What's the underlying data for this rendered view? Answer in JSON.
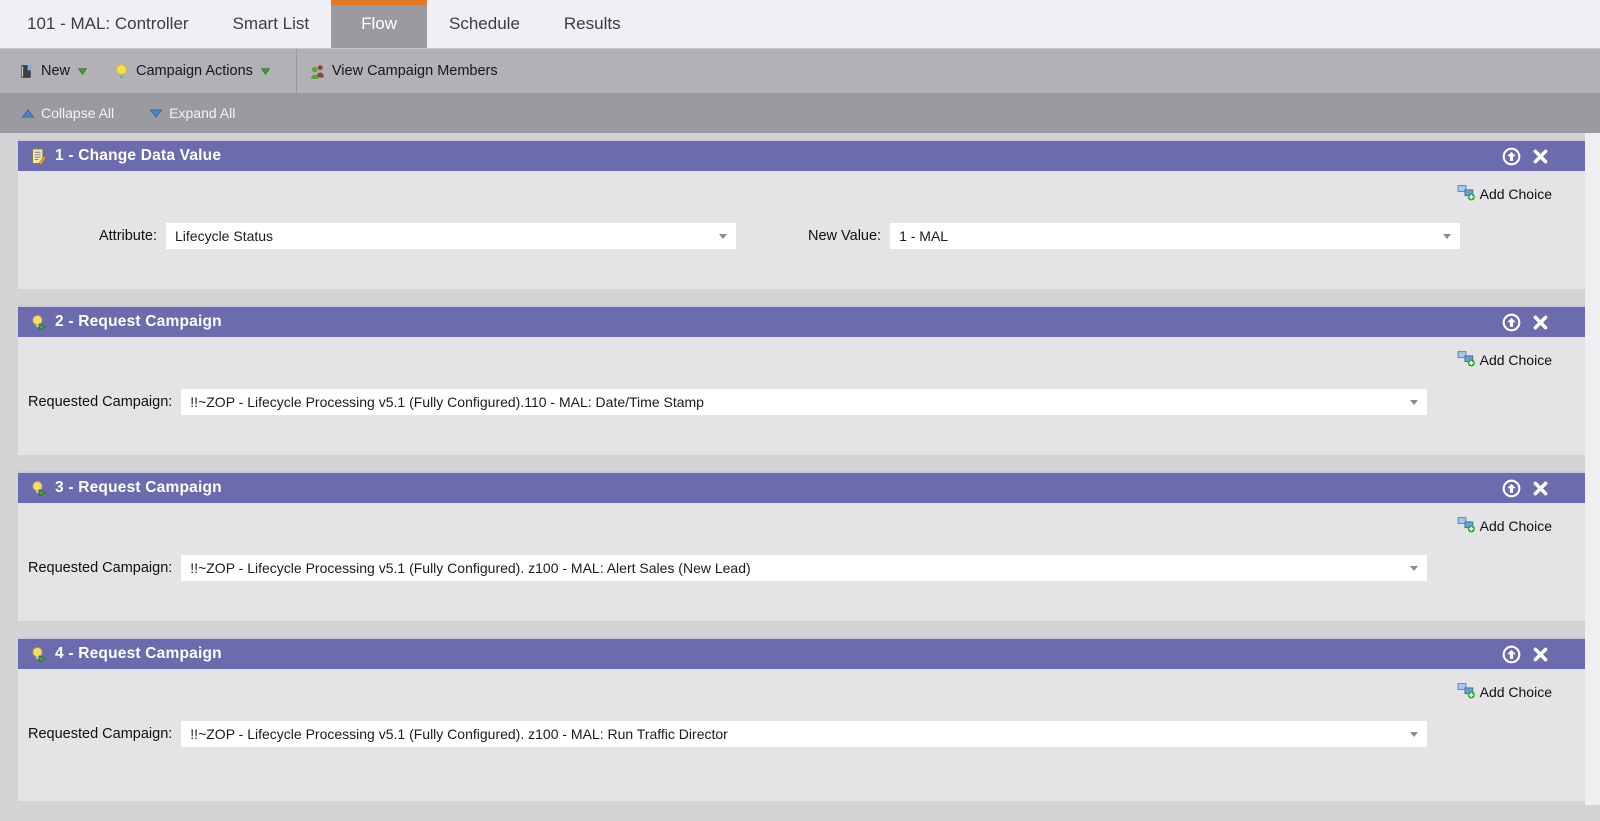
{
  "tabs": {
    "items": [
      {
        "label": "101 - MAL: Controller",
        "active": false
      },
      {
        "label": "Smart List",
        "active": false
      },
      {
        "label": "Flow",
        "active": true
      },
      {
        "label": "Schedule",
        "active": false
      },
      {
        "label": "Results",
        "active": false
      }
    ]
  },
  "toolbar": {
    "new_label": "New",
    "campaign_actions_label": "Campaign Actions",
    "view_campaign_members_label": "View Campaign Members"
  },
  "collapse_bar": {
    "collapse_all_label": "Collapse All",
    "expand_all_label": "Expand All"
  },
  "step_ui": {
    "add_choice_label": "Add Choice"
  },
  "flow_steps": [
    {
      "title": "1 - Change Data Value",
      "icon": "change-data-value-icon",
      "fields": [
        {
          "name": "attribute-select",
          "label": "Attribute:",
          "value": "Lifecycle Status"
        },
        {
          "name": "new-value-select",
          "label": "New Value:",
          "value": "1 - MAL"
        }
      ]
    },
    {
      "title": "2 - Request Campaign",
      "icon": "request-campaign-icon",
      "fields": [
        {
          "name": "requested-campaign-select",
          "label": "Requested Campaign:",
          "value": "!!~ZOP - Lifecycle Processing v5.1 (Fully Configured).110 - MAL: Date/Time Stamp"
        }
      ]
    },
    {
      "title": "3 - Request Campaign",
      "icon": "request-campaign-icon",
      "fields": [
        {
          "name": "requested-campaign-select",
          "label": "Requested Campaign:",
          "value": "!!~ZOP - Lifecycle Processing v5.1 (Fully Configured). z100 - MAL: Alert Sales (New Lead)"
        }
      ]
    },
    {
      "title": "4 - Request Campaign",
      "icon": "request-campaign-icon",
      "fields": [
        {
          "name": "requested-campaign-select",
          "label": "Requested Campaign:",
          "value": "!!~ZOP - Lifecycle Processing v5.1 (Fully Configured). z100 - MAL: Run Traffic Director"
        }
      ]
    }
  ],
  "colors": {
    "accent_orange": "#e0782a",
    "step_header_purple": "#6c6bae",
    "step_header_border": "#c9c8df",
    "step_body_gray": "#e4e3e6",
    "page_gray": "#d3d2d5",
    "toolbar_gray": "#b2b1b6",
    "bar_gray": "#9b9aa0",
    "triangle_blue": "#4a86c8",
    "triangle_green": "#3f9c35"
  }
}
